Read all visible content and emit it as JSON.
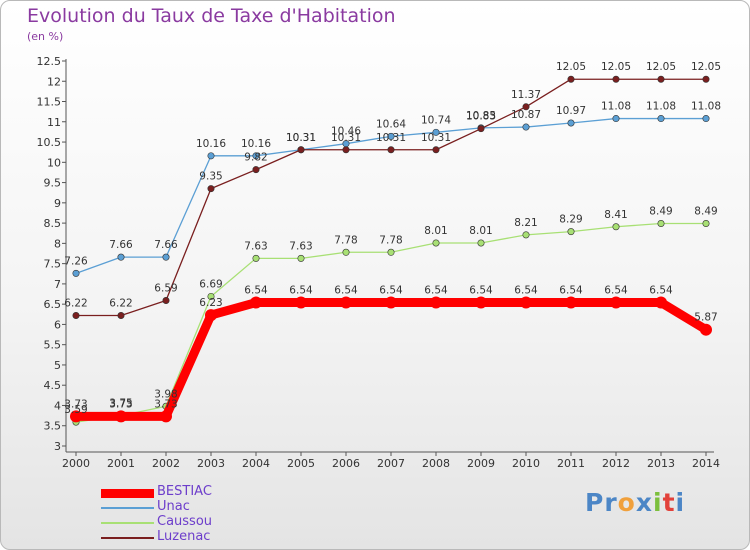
{
  "title": "Evolution du Taux de Taxe d'Habitation",
  "subtitle": "(en %)",
  "logo": {
    "letters": [
      "P",
      "r",
      "o",
      "x",
      "i",
      "t",
      "i"
    ],
    "colors": [
      "#4c86c6",
      "#4c86c6",
      "#f0a03c",
      "#4c86c6",
      "#7cbf3c",
      "#e2413a",
      "#4c86c6"
    ]
  },
  "chart_data": {
    "type": "line",
    "x": [
      "2000",
      "2001",
      "2002",
      "2003",
      "2004",
      "2005",
      "2006",
      "2007",
      "2008",
      "2009",
      "2010",
      "2011",
      "2012",
      "2013",
      "2014"
    ],
    "ylim": [
      3,
      12.5
    ],
    "yticks": [
      "3",
      "3.5",
      "4",
      "4.5",
      "5",
      "5.5",
      "6",
      "6.5",
      "7",
      "7.5",
      "8",
      "8.5",
      "9",
      "9.5",
      "10",
      "10.5",
      "11",
      "11.5",
      "12",
      "12.5"
    ],
    "grid": false,
    "legend_position": "bottom-left",
    "series": [
      {
        "name": "Unac",
        "color": "#5b9fd4",
        "width": 1.3,
        "values": [
          7.26,
          7.66,
          7.66,
          10.16,
          10.16,
          10.31,
          10.46,
          10.64,
          10.74,
          10.85,
          10.87,
          10.97,
          11.08,
          11.08,
          11.08
        ],
        "labels": [
          "7.26",
          "7.66",
          "7.66",
          "10.16",
          "10.16",
          "10.31",
          "10.46",
          "10.64",
          "10.74",
          "10.85",
          "10.87",
          "10.97",
          "11.08",
          "11.08",
          "11.08"
        ]
      },
      {
        "name": "Caussou",
        "color": "#a8e074",
        "width": 1.3,
        "values": [
          3.59,
          3.75,
          3.98,
          6.69,
          7.63,
          7.63,
          7.78,
          7.78,
          8.01,
          8.01,
          8.21,
          8.29,
          8.41,
          8.49,
          8.49
        ],
        "labels": [
          "3.59",
          "3.75",
          "3.98",
          "6.69",
          "7.63",
          "7.63",
          "7.78",
          "7.78",
          "8.01",
          "8.01",
          "8.21",
          "8.29",
          "8.41",
          "8.49",
          "8.49"
        ]
      },
      {
        "name": "Luzenac",
        "color": "#7a1f1f",
        "width": 1.3,
        "values": [
          6.22,
          6.22,
          6.59,
          9.35,
          9.82,
          10.31,
          10.31,
          10.31,
          10.31,
          10.83,
          11.37,
          12.05,
          12.05,
          12.05,
          12.05
        ],
        "labels": [
          "6.22",
          "6.22",
          "6.59",
          "9.35",
          "9.82",
          "10.31",
          "10.31",
          "10.31",
          "10.31",
          "10.83",
          "11.37",
          "12.05",
          "12.05",
          "12.05",
          "12.05"
        ]
      },
      {
        "name": "BESTIAC",
        "color": "#ff0000",
        "width": 9,
        "values": [
          3.73,
          3.73,
          3.73,
          6.23,
          6.54,
          6.54,
          6.54,
          6.54,
          6.54,
          6.54,
          6.54,
          6.54,
          6.54,
          6.54,
          5.87
        ],
        "labels": [
          "3.73",
          "3.73",
          "3.73",
          "6.23",
          "6.54",
          "6.54",
          "6.54",
          "6.54",
          "6.54",
          "6.54",
          "6.54",
          "6.54",
          "6.54",
          "6.54",
          "5.87"
        ]
      }
    ],
    "legend_order": [
      "BESTIAC",
      "Unac",
      "Caussou",
      "Luzenac"
    ]
  }
}
